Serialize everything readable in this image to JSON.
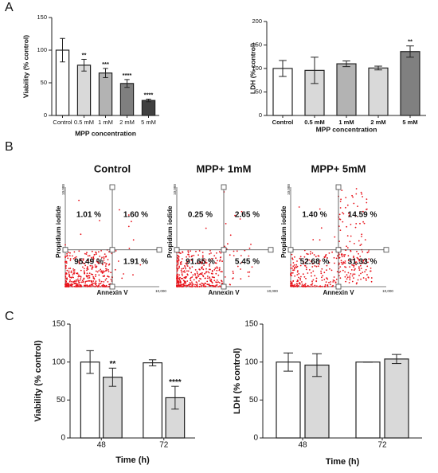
{
  "panel_labels": [
    "A",
    "B",
    "C"
  ],
  "chart_data": [
    {
      "type": "bar",
      "ylabel": "Viability (% control)",
      "xlabel": "MPP concentration",
      "categories": [
        "Control",
        "0.5 mM",
        "1 mM",
        "2 mM",
        "5 mM"
      ],
      "series": [
        {
          "colors": [
            "#ffffff",
            "#d9d9d9",
            "#b3b3b3",
            "#7f7f7f",
            "#404040"
          ],
          "values": [
            100,
            77,
            65,
            49,
            23
          ],
          "errors": [
            18,
            9,
            7,
            6,
            2
          ],
          "significance": [
            null,
            "**",
            "***",
            "****",
            "****"
          ]
        }
      ],
      "ylim": [
        0,
        150
      ],
      "yticks": [
        0,
        50,
        100,
        150
      ]
    },
    {
      "type": "bar",
      "ylabel": "LDH (% control)",
      "xlabel": "MPP concentration",
      "categories": [
        "Control",
        "0.5 mM",
        "1 mM",
        "2 mM",
        "5 mM"
      ],
      "series": [
        {
          "colors": [
            "#ffffff",
            "#d9d9d9",
            "#b3b3b3",
            "#d9d9d9",
            "#808080"
          ],
          "values": [
            100,
            96,
            110,
            101,
            136
          ],
          "errors": [
            17,
            28,
            6,
            4,
            12
          ],
          "significance": [
            null,
            null,
            null,
            null,
            "**"
          ]
        }
      ],
      "ylim": [
        0,
        200
      ],
      "yticks": [
        0,
        50,
        100,
        150,
        200
      ]
    },
    {
      "type": "flow",
      "title": "Control",
      "xlabel": "Annexin V",
      "ylabel": "Propidium iodide",
      "axis_max_label": "10,000",
      "values": [
        1.01,
        1.6,
        95.49,
        1.91
      ],
      "value_labels": [
        "1.01 %",
        "1.60 %",
        "95.49 %",
        "1.91 %"
      ]
    },
    {
      "type": "flow",
      "title": "MPP+ 1mM",
      "xlabel": "Annexin V",
      "ylabel": "Propidium iodide",
      "axis_max_label": "10,000",
      "values": [
        0.25,
        2.65,
        91.65,
        5.45
      ],
      "value_labels": [
        "0.25 %",
        "2.65 %",
        "91.65 %",
        "5.45 %"
      ]
    },
    {
      "type": "flow",
      "title": "MPP+ 5mM",
      "xlabel": "Annexin V",
      "ylabel": "Propidium iodide",
      "axis_max_label": "10,000",
      "values": [
        1.4,
        14.59,
        52.68,
        31.33
      ],
      "value_labels": [
        "1.40 %",
        "14.59 %",
        "52.68 %",
        "31.33 %"
      ]
    },
    {
      "type": "bar",
      "ylabel": "Viability (% control)",
      "xlabel": "Time (h)",
      "categories": [
        "48",
        "72"
      ],
      "series": [
        {
          "color": "#ffffff",
          "values": [
            100,
            99
          ],
          "errors": [
            15,
            4
          ],
          "significance": [
            null,
            null
          ]
        },
        {
          "color": "#d9d9d9",
          "values": [
            80,
            53
          ],
          "errors": [
            12,
            15
          ],
          "significance": [
            "**",
            "****"
          ]
        }
      ],
      "ylim": [
        0,
        150
      ],
      "yticks": [
        0,
        50,
        100,
        150
      ]
    },
    {
      "type": "bar",
      "ylabel": "LDH (% control)",
      "xlabel": "Time (h)",
      "categories": [
        "48",
        "72"
      ],
      "series": [
        {
          "color": "#ffffff",
          "values": [
            100,
            100
          ],
          "errors": [
            12,
            0
          ],
          "significance": [
            null,
            null
          ]
        },
        {
          "color": "#d9d9d9",
          "values": [
            96,
            104
          ],
          "errors": [
            15,
            6
          ],
          "significance": [
            null,
            null
          ]
        }
      ],
      "ylim": [
        0,
        150
      ],
      "yticks": [
        0,
        50,
        100,
        150
      ]
    }
  ]
}
